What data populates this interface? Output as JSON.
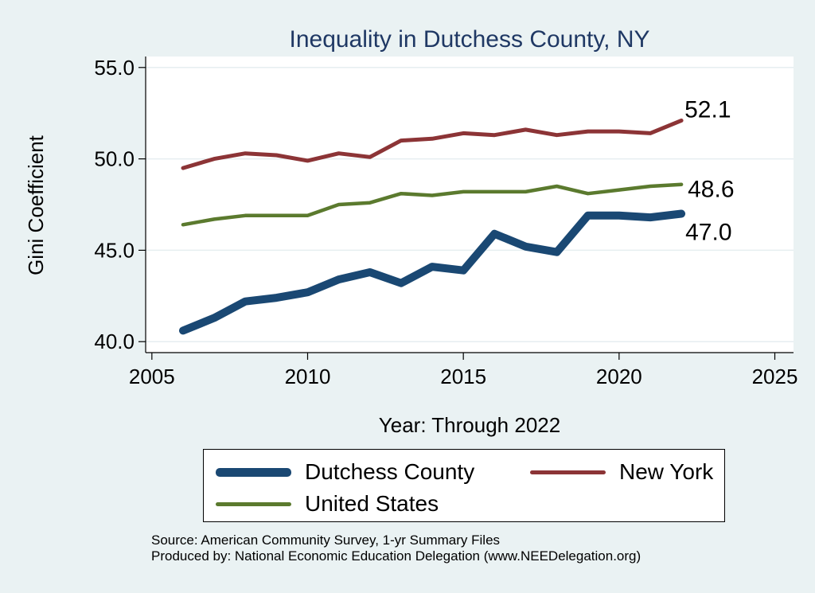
{
  "chart_data": {
    "type": "line",
    "title": "Inequality in Dutchess County, NY",
    "xlabel": "Year: Through 2022",
    "ylabel": "Gini Coefficient",
    "xlim": [
      2004.8,
      2025.6
    ],
    "ylim": [
      39.4,
      55.6
    ],
    "x_ticks": [
      2005,
      2010,
      2015,
      2020,
      2025
    ],
    "x_tick_labels": [
      "2005",
      "2010",
      "2015",
      "2020",
      "2025"
    ],
    "y_ticks": [
      40,
      45,
      50,
      55
    ],
    "y_tick_labels": [
      "40.0",
      "45.0",
      "50.0",
      "55.0"
    ],
    "grid": true,
    "legend_position": "bottom",
    "series": [
      {
        "name": "Dutchess County",
        "color": "#1a4873",
        "x": [
          2006,
          2007,
          2008,
          2009,
          2010,
          2011,
          2012,
          2013,
          2014,
          2015,
          2016,
          2017,
          2018,
          2019,
          2020,
          2021,
          2022
        ],
        "values": [
          40.6,
          41.3,
          42.2,
          42.4,
          42.7,
          43.4,
          43.8,
          43.2,
          44.1,
          43.9,
          45.9,
          45.2,
          44.9,
          46.9,
          46.9,
          46.8,
          47.0
        ],
        "end_label": "47.0"
      },
      {
        "name": "New York",
        "color": "#8c3436",
        "x": [
          2006,
          2007,
          2008,
          2009,
          2010,
          2011,
          2012,
          2013,
          2014,
          2015,
          2016,
          2017,
          2018,
          2019,
          2020,
          2021,
          2022
        ],
        "values": [
          49.5,
          50.0,
          50.3,
          50.2,
          49.9,
          50.3,
          50.1,
          51.0,
          51.1,
          51.4,
          51.3,
          51.6,
          51.3,
          51.5,
          51.5,
          51.4,
          52.1
        ],
        "end_label": "52.1"
      },
      {
        "name": "United States",
        "color": "#5b7a2e",
        "x": [
          2006,
          2007,
          2008,
          2009,
          2010,
          2011,
          2012,
          2013,
          2014,
          2015,
          2016,
          2017,
          2018,
          2019,
          2020,
          2021,
          2022
        ],
        "values": [
          46.4,
          46.7,
          46.9,
          46.9,
          46.9,
          47.5,
          47.6,
          48.1,
          48.0,
          48.2,
          48.2,
          48.2,
          48.5,
          48.1,
          48.3,
          48.5,
          48.6
        ],
        "end_label": "48.6"
      }
    ]
  },
  "legend": {
    "items": [
      {
        "label": "Dutchess County",
        "color": "#1a4873"
      },
      {
        "label": "New York",
        "color": "#8c3436"
      },
      {
        "label": "United States",
        "color": "#5b7a2e"
      }
    ]
  },
  "source": {
    "line1": "Source: American Community Survey, 1-yr Summary Files",
    "line2": "Produced by: National Economic Education Delegation (www.NEEDelegation.org)"
  }
}
